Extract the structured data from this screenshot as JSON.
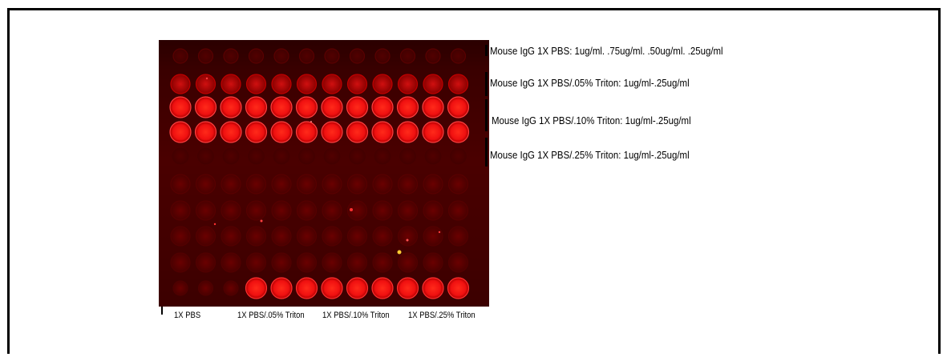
{
  "row_labels": [
    "Mouse IgG 1X PBS: 1ug/ml. .75ug/ml. .50ug/ml. .25ug/ml",
    "Mouse IgG 1X PBS/.05% Triton: 1ug/ml-.25ug/ml",
    "Mouse IgG 1X PBS/.10% Triton: 1ug/ml-.25ug/ml",
    "Mouse IgG  1X PBS/.25% Triton: 1ug/ml-.25ug/ml"
  ],
  "column_labels": [
    "1X PBS",
    "1X PBS/.05% Triton",
    "1X PBS/.10% Triton",
    "1X PBS/.25% Triton"
  ],
  "colors": {
    "plate_background": "#3a0000",
    "well_bright": "#ff1a1a",
    "well_dim": "#5a0000"
  }
}
